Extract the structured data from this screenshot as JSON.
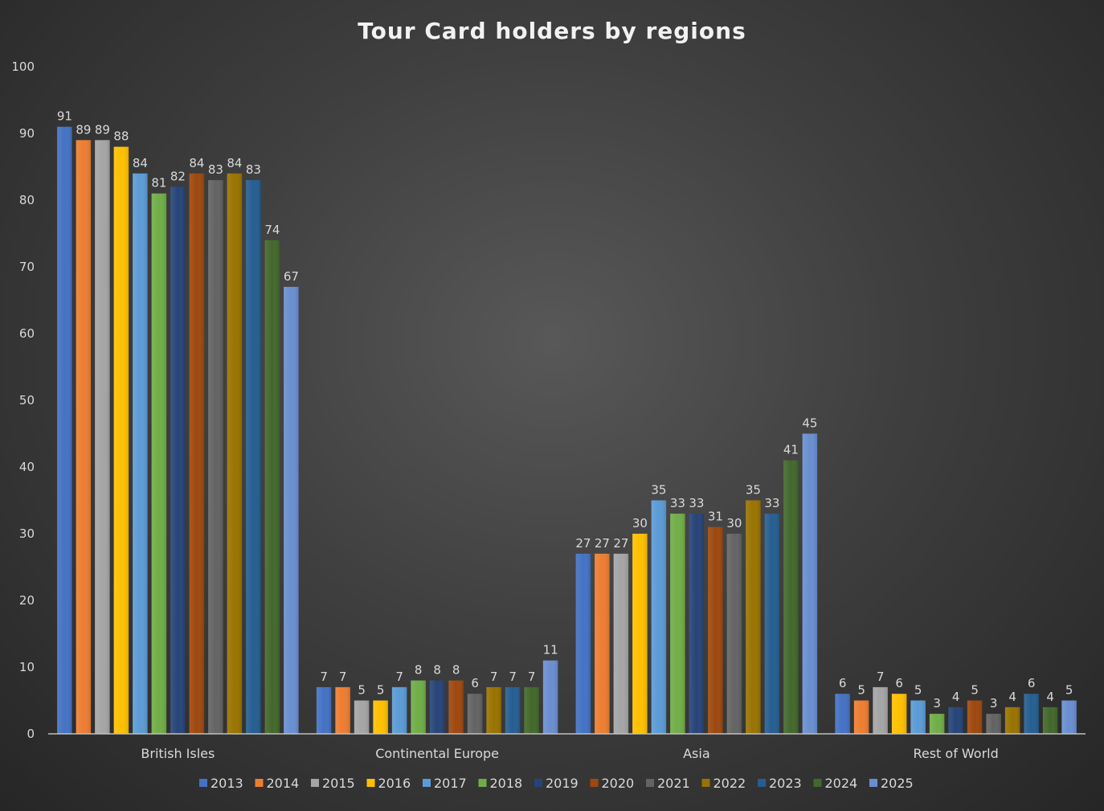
{
  "chart_data": {
    "type": "bar",
    "title": "Tour Card holders by regions",
    "xlabel": "",
    "ylabel": "",
    "ylim": [
      0,
      100
    ],
    "yticks": [
      0,
      10,
      20,
      30,
      40,
      50,
      60,
      70,
      80,
      90,
      100
    ],
    "grid": false,
    "legend_position": "bottom",
    "categories": [
      "British Isles",
      "Continental Europe",
      "Asia",
      "Rest of World"
    ],
    "series": [
      {
        "name": "2013",
        "color": "#4472c4",
        "values": [
          91,
          7,
          27,
          6
        ]
      },
      {
        "name": "2014",
        "color": "#ed7d31",
        "values": [
          89,
          7,
          27,
          5
        ]
      },
      {
        "name": "2015",
        "color": "#a5a5a5",
        "values": [
          89,
          5,
          27,
          7
        ]
      },
      {
        "name": "2016",
        "color": "#ffc000",
        "values": [
          88,
          5,
          30,
          6
        ]
      },
      {
        "name": "2017",
        "color": "#5b9bd5",
        "values": [
          84,
          7,
          35,
          5
        ]
      },
      {
        "name": "2018",
        "color": "#70ad47",
        "values": [
          81,
          8,
          33,
          3
        ]
      },
      {
        "name": "2019",
        "color": "#264478",
        "values": [
          82,
          8,
          33,
          4
        ]
      },
      {
        "name": "2020",
        "color": "#9e480e",
        "values": [
          84,
          8,
          31,
          5
        ]
      },
      {
        "name": "2021",
        "color": "#636363",
        "values": [
          83,
          6,
          30,
          3
        ]
      },
      {
        "name": "2022",
        "color": "#997300",
        "values": [
          84,
          7,
          35,
          4
        ]
      },
      {
        "name": "2023",
        "color": "#255e91",
        "values": [
          83,
          7,
          33,
          6
        ]
      },
      {
        "name": "2024",
        "color": "#43682b",
        "values": [
          74,
          7,
          41,
          4
        ]
      },
      {
        "name": "2025",
        "color": "#698ed0",
        "values": [
          67,
          11,
          45,
          5
        ]
      }
    ]
  }
}
